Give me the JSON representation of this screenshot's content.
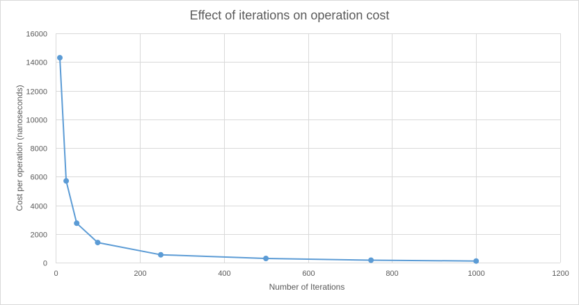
{
  "chart_data": {
    "type": "scatter",
    "title": "Effect of iterations on operation cost",
    "xlabel": "Number  of Iterations",
    "ylabel": "Cost per operation (nanoseconds)",
    "xlim": [
      0,
      1200
    ],
    "ylim": [
      0,
      16000
    ],
    "xticks": [
      0,
      200,
      400,
      600,
      800,
      1000,
      1200
    ],
    "yticks": [
      0,
      2000,
      4000,
      6000,
      8000,
      10000,
      12000,
      14000,
      16000
    ],
    "grid": true,
    "legend": "none",
    "series": [
      {
        "color": "#5b9bd5",
        "x": [
          10,
          25,
          50,
          100,
          250,
          500,
          750,
          1000
        ],
        "y": [
          14300,
          5700,
          2750,
          1400,
          550,
          290,
          170,
          110
        ]
      }
    ]
  }
}
